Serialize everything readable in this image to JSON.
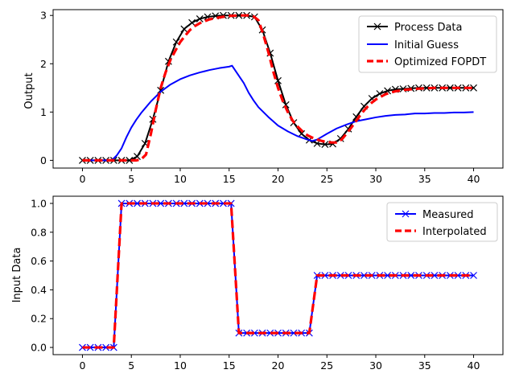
{
  "chart_data": [
    {
      "type": "line",
      "title": "",
      "xlabel": "",
      "ylabel": "Output",
      "xlim": [
        -3,
        43
      ],
      "ylim": [
        -0.16,
        3.12
      ],
      "xticks": [
        0,
        5,
        10,
        15,
        20,
        25,
        30,
        35,
        40
      ],
      "yticks": [
        0,
        1,
        2,
        3
      ],
      "legend_position": "top-right",
      "series": [
        {
          "name": "Process Data",
          "color": "#000000",
          "style": "solid-x-markers",
          "x": [
            0,
            0.8,
            1.6,
            2.4,
            3.2,
            4,
            4.8,
            5.6,
            6.4,
            7.2,
            8,
            8.8,
            9.6,
            10.4,
            11.2,
            12,
            12.8,
            13.6,
            14.4,
            15.2,
            16,
            16.8,
            17.6,
            18.4,
            19.2,
            20,
            20.8,
            21.6,
            22.4,
            23.2,
            24,
            24.8,
            25.6,
            26.4,
            27.2,
            28,
            28.8,
            29.6,
            30.4,
            31.2,
            32,
            32.8,
            33.6,
            34.4,
            35.2,
            36,
            36.8,
            37.6,
            38.4,
            39.2,
            40
          ],
          "y": [
            0,
            0,
            0,
            0,
            0,
            0,
            0,
            0.08,
            0.35,
            0.85,
            1.45,
            2.05,
            2.45,
            2.72,
            2.85,
            2.93,
            2.97,
            2.99,
            3.0,
            3.0,
            3.0,
            3.0,
            2.97,
            2.7,
            2.22,
            1.65,
            1.15,
            0.78,
            0.55,
            0.42,
            0.35,
            0.33,
            0.34,
            0.45,
            0.65,
            0.9,
            1.12,
            1.28,
            1.38,
            1.44,
            1.47,
            1.48,
            1.49,
            1.5,
            1.5,
            1.5,
            1.5,
            1.5,
            1.5,
            1.5,
            1.5
          ]
        },
        {
          "name": "Initial Guess",
          "color": "#0000ff",
          "style": "solid",
          "x": [
            0,
            1,
            2,
            3,
            3.5,
            4,
            4.5,
            5,
            5.5,
            6,
            6.5,
            7,
            8,
            9,
            10,
            11,
            12,
            13,
            14,
            15,
            15.3,
            16,
            16.5,
            17,
            17.5,
            18,
            19,
            20,
            21,
            22,
            23,
            23.5,
            24,
            25,
            26,
            27,
            28,
            29,
            30,
            31,
            32,
            33,
            34,
            35,
            36,
            37,
            38,
            39,
            40
          ],
          "y": [
            0,
            0,
            0,
            0,
            0.1,
            0.25,
            0.48,
            0.68,
            0.84,
            0.98,
            1.1,
            1.22,
            1.42,
            1.57,
            1.68,
            1.76,
            1.82,
            1.87,
            1.91,
            1.94,
            1.96,
            1.75,
            1.6,
            1.4,
            1.24,
            1.1,
            0.9,
            0.72,
            0.6,
            0.5,
            0.43,
            0.4,
            0.43,
            0.55,
            0.66,
            0.74,
            0.81,
            0.85,
            0.89,
            0.92,
            0.94,
            0.95,
            0.97,
            0.97,
            0.98,
            0.98,
            0.99,
            0.99,
            1.0
          ]
        },
        {
          "name": "Optimized FOPDT",
          "color": "#ff0000",
          "style": "dashed",
          "x": [
            0,
            1,
            2,
            3,
            4,
            5,
            5.5,
            6,
            6.5,
            7,
            7.5,
            8,
            8.5,
            9,
            9.5,
            10,
            10.5,
            11,
            11.5,
            12,
            12.5,
            13,
            14,
            15,
            16,
            17,
            17.5,
            18,
            18.5,
            19,
            19.5,
            20,
            20.5,
            21,
            21.5,
            22,
            22.5,
            23,
            23.5,
            24,
            24.5,
            25,
            25.5,
            26,
            26.5,
            27,
            27.5,
            28,
            28.5,
            29,
            29.5,
            30,
            31,
            32,
            33,
            34,
            35,
            36,
            37,
            38,
            39,
            40
          ],
          "y": [
            0,
            0,
            0,
            0,
            0,
            0,
            0,
            0.02,
            0.12,
            0.55,
            1.05,
            1.5,
            1.82,
            2.08,
            2.27,
            2.45,
            2.58,
            2.7,
            2.78,
            2.84,
            2.88,
            2.92,
            2.96,
            2.99,
            3.0,
            3.0,
            2.98,
            2.9,
            2.6,
            2.25,
            1.85,
            1.5,
            1.22,
            1.0,
            0.82,
            0.7,
            0.6,
            0.52,
            0.47,
            0.43,
            0.4,
            0.38,
            0.37,
            0.37,
            0.43,
            0.55,
            0.68,
            0.82,
            0.96,
            1.08,
            1.18,
            1.26,
            1.37,
            1.43,
            1.46,
            1.48,
            1.49,
            1.5,
            1.5,
            1.5,
            1.5,
            1.5
          ]
        }
      ]
    },
    {
      "type": "line",
      "title": "",
      "xlabel": "",
      "ylabel": "Input Data",
      "xlim": [
        -3,
        43
      ],
      "ylim": [
        -0.05,
        1.05
      ],
      "xticks": [
        0,
        5,
        10,
        15,
        20,
        25,
        30,
        35,
        40
      ],
      "yticks": [
        0.0,
        0.2,
        0.4,
        0.6,
        0.8,
        1.0
      ],
      "legend_position": "top-right",
      "series": [
        {
          "name": "Measured",
          "color": "#0000ff",
          "style": "solid-x-markers",
          "x": [
            0,
            0.8,
            1.6,
            2.4,
            3.2,
            4,
            4.8,
            5.6,
            6.4,
            7.2,
            8,
            8.8,
            9.6,
            10.4,
            11.2,
            12,
            12.8,
            13.6,
            14.4,
            15.2,
            16,
            16.8,
            17.6,
            18.4,
            19.2,
            20,
            20.8,
            21.6,
            22.4,
            23.2,
            24,
            24.8,
            25.6,
            26.4,
            27.2,
            28,
            28.8,
            29.6,
            30.4,
            31.2,
            32,
            32.8,
            33.6,
            34.4,
            35.2,
            36,
            36.8,
            37.6,
            38.4,
            39.2,
            40
          ],
          "y": [
            0,
            0,
            0,
            0,
            0,
            1,
            1,
            1,
            1,
            1,
            1,
            1,
            1,
            1,
            1,
            1,
            1,
            1,
            1,
            1,
            0.1,
            0.1,
            0.1,
            0.1,
            0.1,
            0.1,
            0.1,
            0.1,
            0.1,
            0.1,
            0.5,
            0.5,
            0.5,
            0.5,
            0.5,
            0.5,
            0.5,
            0.5,
            0.5,
            0.5,
            0.5,
            0.5,
            0.5,
            0.5,
            0.5,
            0.5,
            0.5,
            0.5,
            0.5,
            0.5,
            0.5
          ]
        },
        {
          "name": "Interpolated",
          "color": "#ff0000",
          "style": "dashed",
          "x": [
            0,
            3.2,
            4,
            15.2,
            16,
            23.2,
            24,
            40
          ],
          "y": [
            0,
            0,
            1,
            1,
            0.1,
            0.1,
            0.5,
            0.5
          ]
        }
      ]
    }
  ]
}
